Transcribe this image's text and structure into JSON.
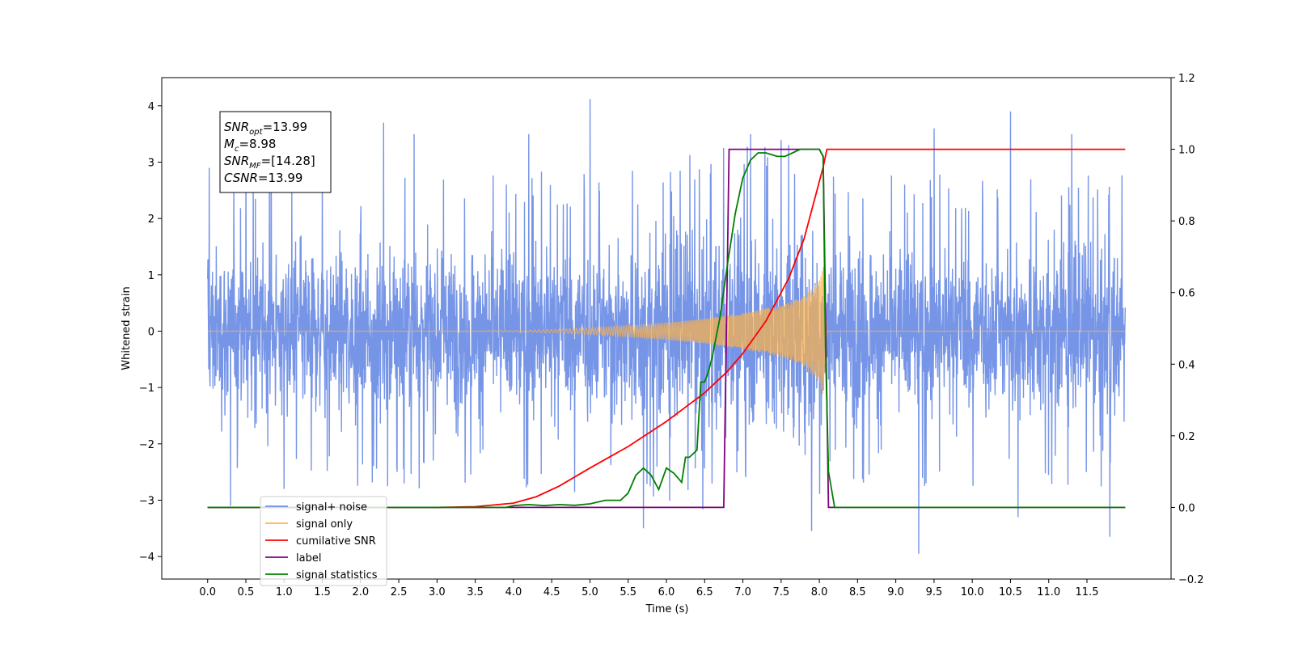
{
  "chart_data": {
    "type": "line",
    "xlabel": "Time (s)",
    "ylabel_left": "Whitened strain",
    "ylabel_right": "",
    "xlim": [
      -0.6,
      12.6
    ],
    "ylim_left": [
      -4.4,
      4.5
    ],
    "ylim_right": [
      -0.2,
      1.2
    ],
    "x_ticks": [
      "0.0",
      "0.5",
      "1.0",
      "1.5",
      "2.0",
      "2.5",
      "3.0",
      "3.5",
      "4.0",
      "4.5",
      "5.0",
      "5.5",
      "6.0",
      "6.5",
      "7.0",
      "7.5",
      "8.0",
      "8.5",
      "9.0",
      "9.5",
      "10.0",
      "10.5",
      "11.0",
      "11.5"
    ],
    "y_ticks_left": [
      "−4",
      "−3",
      "−2",
      "−1",
      "0",
      "1",
      "2",
      "3",
      "4"
    ],
    "y_ticks_right": [
      "−0.2",
      "0.0",
      "0.2",
      "0.4",
      "0.6",
      "0.8",
      "1.0",
      "1.2"
    ],
    "grid": false,
    "legend_position": "lower-left",
    "annotation": {
      "lines": [
        {
          "var": "SNR",
          "sub": "opt",
          "value": "=13.99"
        },
        {
          "var": "M",
          "sub": "c",
          "value": "=8.98"
        },
        {
          "var": "SNR",
          "sub": "MF",
          "value": "=[14.28]"
        },
        {
          "var": "CSNR",
          "sub": "",
          "value": "=13.99"
        }
      ]
    },
    "series": [
      {
        "name": "signal+ noise",
        "axis": "left",
        "color": "#6f8fe6",
        "description_stats": {
          "x_start": 0.0,
          "x_end": 12.0,
          "typical_amplitude": 1.8,
          "max": 4.12,
          "min": -3.95
        },
        "envelope_x": [
          0.0,
          1.0,
          2.0,
          3.0,
          4.0,
          5.0,
          5.5,
          6.0,
          6.5,
          7.0,
          7.5,
          8.0,
          8.1,
          9.0,
          10.0,
          11.0,
          12.0
        ],
        "envelope_upper": [
          2.0,
          2.0,
          2.0,
          2.0,
          2.0,
          2.1,
          2.1,
          2.2,
          2.3,
          2.4,
          2.5,
          2.6,
          2.0,
          2.0,
          2.0,
          2.0,
          2.0
        ],
        "envelope_lower": [
          -2.0,
          -2.0,
          -2.0,
          -2.0,
          -2.0,
          -2.1,
          -2.1,
          -2.2,
          -2.3,
          -2.4,
          -2.5,
          -2.6,
          -2.0,
          -2.0,
          -2.0,
          -2.0,
          -2.0
        ],
        "spikes": [
          [
            0.02,
            2.9
          ],
          [
            0.3,
            -3.1
          ],
          [
            0.5,
            3.4
          ],
          [
            1.0,
            -2.8
          ],
          [
            1.5,
            3.0
          ],
          [
            2.3,
            3.7
          ],
          [
            2.7,
            3.5
          ],
          [
            4.2,
            3.5
          ],
          [
            5.0,
            4.12
          ],
          [
            5.7,
            -3.5
          ],
          [
            7.1,
            3.5
          ],
          [
            7.9,
            -3.55
          ],
          [
            9.3,
            -3.95
          ],
          [
            9.5,
            3.6
          ],
          [
            10.5,
            3.9
          ],
          [
            10.6,
            -3.3
          ],
          [
            11.3,
            3.5
          ],
          [
            11.8,
            -3.65
          ]
        ]
      },
      {
        "name": "signal only",
        "axis": "left",
        "color": "#ffb347",
        "x": [
          0.0,
          1.0,
          2.0,
          3.0,
          4.0,
          4.5,
          5.0,
          5.5,
          6.0,
          6.5,
          7.0,
          7.5,
          7.8,
          8.0,
          8.05,
          8.1,
          9.0,
          12.0
        ],
        "amplitude": [
          0.0,
          0.0,
          0.0,
          0.0,
          0.01,
          0.03,
          0.06,
          0.1,
          0.15,
          0.22,
          0.32,
          0.46,
          0.62,
          0.9,
          1.2,
          0.0,
          0.0,
          0.0
        ]
      },
      {
        "name": "cumilative SNR",
        "axis": "right",
        "color": "#ff0000",
        "x": [
          0.0,
          3.0,
          3.5,
          4.0,
          4.3,
          4.6,
          5.0,
          5.5,
          6.0,
          6.5,
          6.8,
          7.0,
          7.3,
          7.6,
          7.8,
          7.95,
          8.05,
          8.1,
          12.0
        ],
        "values": [
          0.0,
          0.0,
          0.002,
          0.012,
          0.03,
          0.06,
          0.11,
          0.17,
          0.24,
          0.32,
          0.38,
          0.43,
          0.52,
          0.64,
          0.75,
          0.87,
          0.95,
          1.0,
          1.0
        ]
      },
      {
        "name": "label",
        "axis": "right",
        "color": "#800080",
        "x": [
          0.0,
          6.75,
          6.82,
          8.0,
          8.05,
          8.12,
          12.0
        ],
        "values": [
          0.0,
          0.0,
          1.0,
          1.0,
          0.98,
          0.0,
          0.0
        ]
      },
      {
        "name": "signal statistics",
        "axis": "right",
        "color": "#008000",
        "x": [
          0.0,
          3.9,
          4.0,
          4.2,
          4.4,
          4.6,
          4.8,
          5.0,
          5.2,
          5.4,
          5.5,
          5.6,
          5.7,
          5.8,
          5.9,
          6.0,
          6.1,
          6.2,
          6.25,
          6.3,
          6.4,
          6.45,
          6.5,
          6.55,
          6.6,
          6.7,
          6.8,
          6.9,
          7.0,
          7.1,
          7.2,
          7.3,
          7.45,
          7.55,
          7.65,
          7.75,
          7.8,
          8.0,
          8.05,
          8.08,
          8.12,
          8.2,
          12.0
        ],
        "values": [
          0.0,
          0.0,
          0.005,
          0.008,
          0.005,
          0.008,
          0.006,
          0.01,
          0.02,
          0.02,
          0.04,
          0.09,
          0.11,
          0.09,
          0.05,
          0.11,
          0.095,
          0.07,
          0.14,
          0.14,
          0.16,
          0.35,
          0.35,
          0.38,
          0.42,
          0.53,
          0.68,
          0.82,
          0.92,
          0.97,
          0.99,
          0.99,
          0.98,
          0.98,
          0.99,
          1.0,
          1.0,
          1.0,
          0.98,
          0.45,
          0.1,
          0.0,
          0.0
        ]
      }
    ],
    "legend_entries": [
      {
        "label": "signal+ noise",
        "color": "#6f8fe6"
      },
      {
        "label": "signal only",
        "color": "#ffb347"
      },
      {
        "label": "cumilative SNR",
        "color": "#ff0000"
      },
      {
        "label": "label",
        "color": "#800080"
      },
      {
        "label": "signal statistics",
        "color": "#008000"
      }
    ]
  }
}
